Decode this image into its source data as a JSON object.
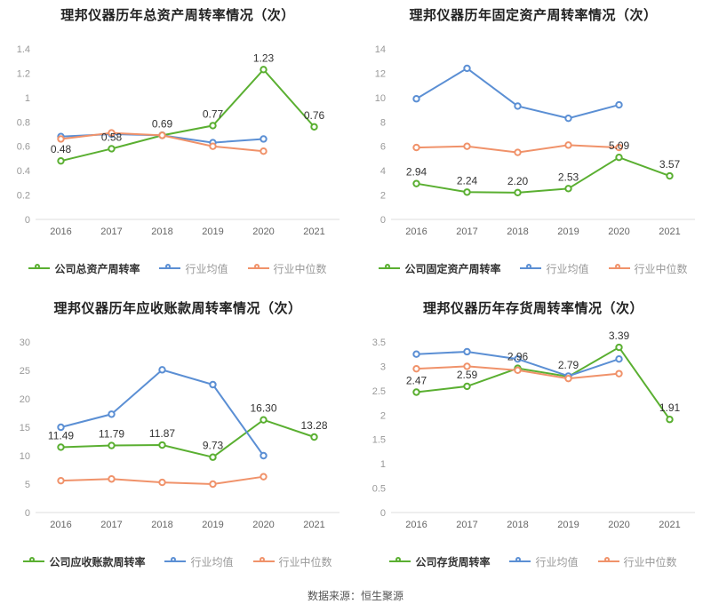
{
  "page": {
    "footer": "数据来源：恒生聚源"
  },
  "colors": {
    "company": "#5aaf31",
    "industry_mean": "#5b8fd4",
    "industry_median": "#f0926a",
    "data_label": "#333333",
    "axis_line": "#dddddd",
    "y_tick_text": "#999999",
    "x_tick_text": "#666666"
  },
  "chart_data": [
    {
      "type": "line",
      "title": "理邦仪器历年总资产周转率情况（次）",
      "categories": [
        "2016",
        "2017",
        "2018",
        "2019",
        "2020",
        "2021"
      ],
      "ylim": [
        0,
        1.4
      ],
      "yticks": [
        0,
        0.2,
        0.4,
        0.6,
        0.8,
        1,
        1.2,
        1.4
      ],
      "ytick_labels": [
        "0",
        "0.2",
        "0.4",
        "0.6",
        "0.8",
        "1",
        "1.2",
        "1.4"
      ],
      "legend_position": "bottom",
      "grid": false,
      "series": [
        {
          "name": "公司总资产周转率",
          "role": "company",
          "values": [
            0.48,
            0.58,
            0.69,
            0.77,
            1.23,
            0.76
          ],
          "labels": [
            "0.48",
            "0.58",
            "0.69",
            "0.77",
            "1.23",
            "0.76"
          ]
        },
        {
          "name": "行业均值",
          "role": "industry_mean",
          "values": [
            0.68,
            0.7,
            0.69,
            0.63,
            0.66
          ]
        },
        {
          "name": "行业中位数",
          "role": "industry_median",
          "values": [
            0.66,
            0.71,
            0.69,
            0.6,
            0.56
          ]
        }
      ]
    },
    {
      "type": "line",
      "title": "理邦仪器历年固定资产周转率情况（次）",
      "categories": [
        "2016",
        "2017",
        "2018",
        "2019",
        "2020",
        "2021"
      ],
      "ylim": [
        0,
        14
      ],
      "yticks": [
        0,
        2,
        4,
        6,
        8,
        10,
        12,
        14
      ],
      "ytick_labels": [
        "0",
        "2",
        "4",
        "6",
        "8",
        "10",
        "12",
        "14"
      ],
      "legend_position": "bottom",
      "grid": false,
      "series": [
        {
          "name": "公司固定资产周转率",
          "role": "company",
          "values": [
            2.94,
            2.24,
            2.2,
            2.53,
            5.09,
            3.57
          ],
          "labels": [
            "2.94",
            "2.24",
            "2.20",
            "2.53",
            "5.09",
            "3.57"
          ]
        },
        {
          "name": "行业均值",
          "role": "industry_mean",
          "values": [
            9.9,
            12.4,
            9.3,
            8.3,
            9.4
          ]
        },
        {
          "name": "行业中位数",
          "role": "industry_median",
          "values": [
            5.9,
            6.0,
            5.5,
            6.1,
            5.9
          ]
        }
      ]
    },
    {
      "type": "line",
      "title": "理邦仪器历年应收账款周转率情况（次）",
      "categories": [
        "2016",
        "2017",
        "2018",
        "2019",
        "2020",
        "2021"
      ],
      "ylim": [
        0,
        30
      ],
      "yticks": [
        0,
        5,
        10,
        15,
        20,
        25,
        30
      ],
      "ytick_labels": [
        "0",
        "5",
        "10",
        "15",
        "20",
        "25",
        "30"
      ],
      "legend_position": "bottom",
      "grid": false,
      "series": [
        {
          "name": "公司应收账款周转率",
          "role": "company",
          "values": [
            11.49,
            11.79,
            11.87,
            9.73,
            16.3,
            13.28
          ],
          "labels": [
            "11.49",
            "11.79",
            "11.87",
            "9.73",
            "16.30",
            "13.28"
          ]
        },
        {
          "name": "行业均值",
          "role": "industry_mean",
          "values": [
            15.0,
            17.3,
            25.1,
            22.5,
            10.0
          ]
        },
        {
          "name": "行业中位数",
          "role": "industry_median",
          "values": [
            5.6,
            5.9,
            5.3,
            5.0,
            6.3
          ]
        }
      ]
    },
    {
      "type": "line",
      "title": "理邦仪器历年存货周转率情况（次）",
      "categories": [
        "2016",
        "2017",
        "2018",
        "2019",
        "2020",
        "2021"
      ],
      "ylim": [
        0,
        3.5
      ],
      "yticks": [
        0,
        0.5,
        1,
        1.5,
        2,
        2.5,
        3,
        3.5
      ],
      "ytick_labels": [
        "0",
        "0.5",
        "1",
        "1.5",
        "2",
        "2.5",
        "3",
        "3.5"
      ],
      "legend_position": "bottom",
      "grid": false,
      "series": [
        {
          "name": "公司存货周转率",
          "role": "company",
          "values": [
            2.47,
            2.59,
            2.96,
            2.79,
            3.39,
            1.91
          ],
          "labels": [
            "2.47",
            "2.59",
            "2.96",
            "2.79",
            "3.39",
            "1.91"
          ]
        },
        {
          "name": "行业均值",
          "role": "industry_mean",
          "values": [
            3.25,
            3.3,
            3.15,
            2.8,
            3.15
          ]
        },
        {
          "name": "行业中位数",
          "role": "industry_median",
          "values": [
            2.95,
            3.0,
            2.92,
            2.75,
            2.85
          ]
        }
      ]
    }
  ]
}
